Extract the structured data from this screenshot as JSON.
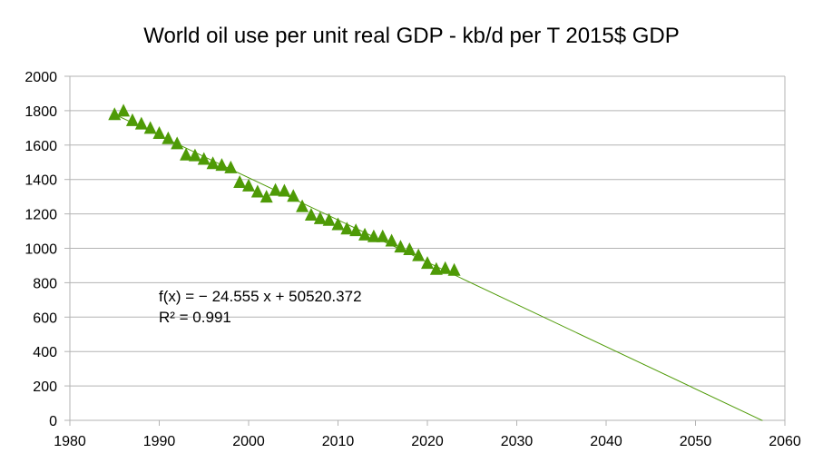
{
  "chart_data": {
    "type": "scatter",
    "title": "World oil use per unit real GDP - kb/d per T 2015$ GDP",
    "xlabel": "",
    "ylabel": "",
    "xlim": [
      1980,
      2060
    ],
    "ylim": [
      0,
      2000
    ],
    "x_ticks": [
      "1980",
      "1990",
      "2000",
      "2010",
      "2020",
      "2030",
      "2040",
      "2050",
      "2060"
    ],
    "y_ticks": [
      "0",
      "200",
      "400",
      "600",
      "800",
      "1000",
      "1200",
      "1400",
      "1600",
      "1800",
      "2000"
    ],
    "grid": "horizontal",
    "legend": "none",
    "marker": "triangle",
    "marker_color": "#4e9a06",
    "trendline_color": "#4e9a06",
    "trendline": {
      "type": "linear",
      "slope": -24.555,
      "intercept": 50520.372,
      "x_range": [
        1985,
        2057.5
      ],
      "equation_text": "f(x) = − 24.555 x + 50520.372",
      "r2_text": "R² = 0.991"
    },
    "series": [
      {
        "x": [
          1985,
          1986,
          1987,
          1988,
          1989,
          1990,
          1991,
          1992,
          1993,
          1994,
          1995,
          1996,
          1997,
          1998,
          1999,
          2000,
          2001,
          2002,
          2003,
          2004,
          2005,
          2006,
          2007,
          2008,
          2009,
          2010,
          2011,
          2012,
          2013,
          2014,
          2015,
          2016,
          2017,
          2018,
          2019,
          2020,
          2021,
          2022,
          2023
        ],
        "y": [
          1780,
          1800,
          1745,
          1725,
          1700,
          1670,
          1640,
          1610,
          1545,
          1540,
          1520,
          1495,
          1485,
          1470,
          1385,
          1365,
          1330,
          1300,
          1340,
          1335,
          1305,
          1245,
          1195,
          1175,
          1165,
          1140,
          1115,
          1105,
          1080,
          1070,
          1070,
          1045,
          1010,
          995,
          960,
          915,
          880,
          885,
          875
        ]
      }
    ]
  }
}
